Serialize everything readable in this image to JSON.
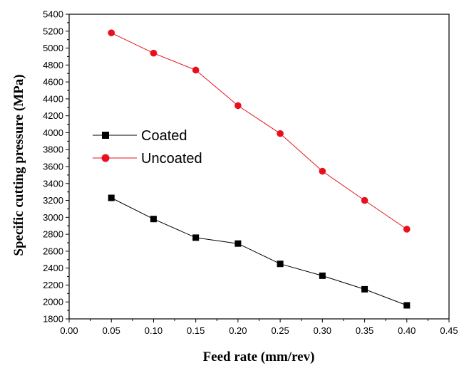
{
  "chart_data": {
    "type": "line",
    "title": "",
    "xlabel": "Feed rate (mm/rev)",
    "ylabel": "Specific cutting pressure (MPa)",
    "xlim": [
      0.0,
      0.45
    ],
    "ylim": [
      1800,
      5400
    ],
    "x_ticks": [
      "0.00",
      "0.05",
      "0.10",
      "0.15",
      "0.20",
      "0.25",
      "0.30",
      "0.35",
      "0.40",
      "0.45"
    ],
    "y_ticks": [
      "1800",
      "2000",
      "2200",
      "2400",
      "2600",
      "2800",
      "3000",
      "3200",
      "3400",
      "3600",
      "3800",
      "4000",
      "4200",
      "4400",
      "4600",
      "4800",
      "5000",
      "5200",
      "5400"
    ],
    "x": [
      0.05,
      0.1,
      0.15,
      0.2,
      0.25,
      0.3,
      0.35,
      0.4
    ],
    "series": [
      {
        "name": "Coated",
        "color": "#000000",
        "marker": "square",
        "values": [
          3230,
          2980,
          2760,
          2690,
          2450,
          2310,
          2150,
          1960
        ]
      },
      {
        "name": "Uncoated",
        "color": "#e8101c",
        "marker": "circle",
        "values": [
          5180,
          4940,
          4740,
          4320,
          3990,
          3545,
          3200,
          2860
        ]
      }
    ],
    "grid": false,
    "legend_position": "middle-left"
  }
}
